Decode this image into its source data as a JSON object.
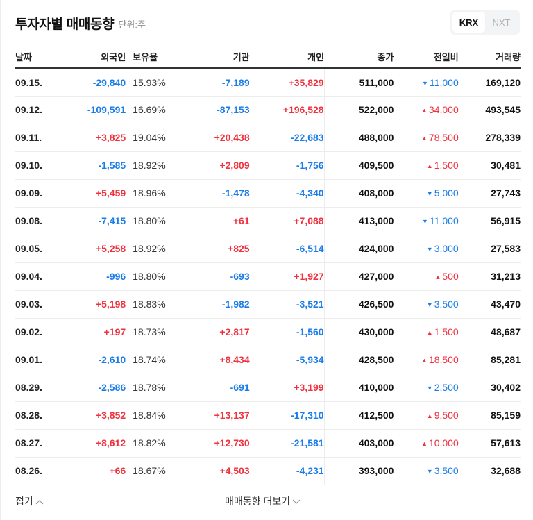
{
  "header": {
    "title": "투자자별 매매동향",
    "unit": "단위:주",
    "market_options": [
      {
        "label": "KRX",
        "active": true
      },
      {
        "label": "NXT",
        "active": false
      }
    ]
  },
  "colors": {
    "up": "#f0313e",
    "down": "#1a7ce8",
    "text": "#111111",
    "divider": "#ececec",
    "header_rule": "#333333"
  },
  "table": {
    "columns": [
      "날짜",
      "외국인",
      "보유율",
      "기관",
      "개인",
      "종가",
      "전일비",
      "거래량"
    ],
    "rows": [
      {
        "date": "09.15.",
        "foreign": "-29,840",
        "hold": "15.93%",
        "inst": "-7,189",
        "personal": "+35,829",
        "close": "511,000",
        "change_dir": "down",
        "change": "11,000",
        "volume": "169,120"
      },
      {
        "date": "09.12.",
        "foreign": "-109,591",
        "hold": "16.69%",
        "inst": "-87,153",
        "personal": "+196,528",
        "close": "522,000",
        "change_dir": "up",
        "change": "34,000",
        "volume": "493,545"
      },
      {
        "date": "09.11.",
        "foreign": "+3,825",
        "hold": "19.04%",
        "inst": "+20,438",
        "personal": "-22,683",
        "close": "488,000",
        "change_dir": "up",
        "change": "78,500",
        "volume": "278,339"
      },
      {
        "date": "09.10.",
        "foreign": "-1,585",
        "hold": "18.92%",
        "inst": "+2,809",
        "personal": "-1,756",
        "close": "409,500",
        "change_dir": "up",
        "change": "1,500",
        "volume": "30,481"
      },
      {
        "date": "09.09.",
        "foreign": "+5,459",
        "hold": "18.96%",
        "inst": "-1,478",
        "personal": "-4,340",
        "close": "408,000",
        "change_dir": "down",
        "change": "5,000",
        "volume": "27,743"
      },
      {
        "date": "09.08.",
        "foreign": "-7,415",
        "hold": "18.80%",
        "inst": "+61",
        "personal": "+7,088",
        "close": "413,000",
        "change_dir": "down",
        "change": "11,000",
        "volume": "56,915"
      },
      {
        "date": "09.05.",
        "foreign": "+5,258",
        "hold": "18.92%",
        "inst": "+825",
        "personal": "-6,514",
        "close": "424,000",
        "change_dir": "down",
        "change": "3,000",
        "volume": "27,583"
      },
      {
        "date": "09.04.",
        "foreign": "-996",
        "hold": "18.80%",
        "inst": "-693",
        "personal": "+1,927",
        "close": "427,000",
        "change_dir": "up",
        "change": "500",
        "volume": "31,213"
      },
      {
        "date": "09.03.",
        "foreign": "+5,198",
        "hold": "18.83%",
        "inst": "-1,982",
        "personal": "-3,521",
        "close": "426,500",
        "change_dir": "down",
        "change": "3,500",
        "volume": "43,470"
      },
      {
        "date": "09.02.",
        "foreign": "+197",
        "hold": "18.73%",
        "inst": "+2,817",
        "personal": "-1,560",
        "close": "430,000",
        "change_dir": "up",
        "change": "1,500",
        "volume": "48,687"
      },
      {
        "date": "09.01.",
        "foreign": "-2,610",
        "hold": "18.74%",
        "inst": "+8,434",
        "personal": "-5,934",
        "close": "428,500",
        "change_dir": "up",
        "change": "18,500",
        "volume": "85,281"
      },
      {
        "date": "08.29.",
        "foreign": "-2,586",
        "hold": "18.78%",
        "inst": "-691",
        "personal": "+3,199",
        "close": "410,000",
        "change_dir": "down",
        "change": "2,500",
        "volume": "30,402"
      },
      {
        "date": "08.28.",
        "foreign": "+3,852",
        "hold": "18.84%",
        "inst": "+13,137",
        "personal": "-17,310",
        "close": "412,500",
        "change_dir": "up",
        "change": "9,500",
        "volume": "85,159"
      },
      {
        "date": "08.27.",
        "foreign": "+8,612",
        "hold": "18.82%",
        "inst": "+12,730",
        "personal": "-21,581",
        "close": "403,000",
        "change_dir": "up",
        "change": "10,000",
        "volume": "57,613"
      },
      {
        "date": "08.26.",
        "foreign": "+66",
        "hold": "18.67%",
        "inst": "+4,503",
        "personal": "-4,231",
        "close": "393,000",
        "change_dir": "down",
        "change": "3,500",
        "volume": "32,688"
      }
    ]
  },
  "footer": {
    "fold_label": "접기",
    "more_label": "매매동향 더보기"
  }
}
